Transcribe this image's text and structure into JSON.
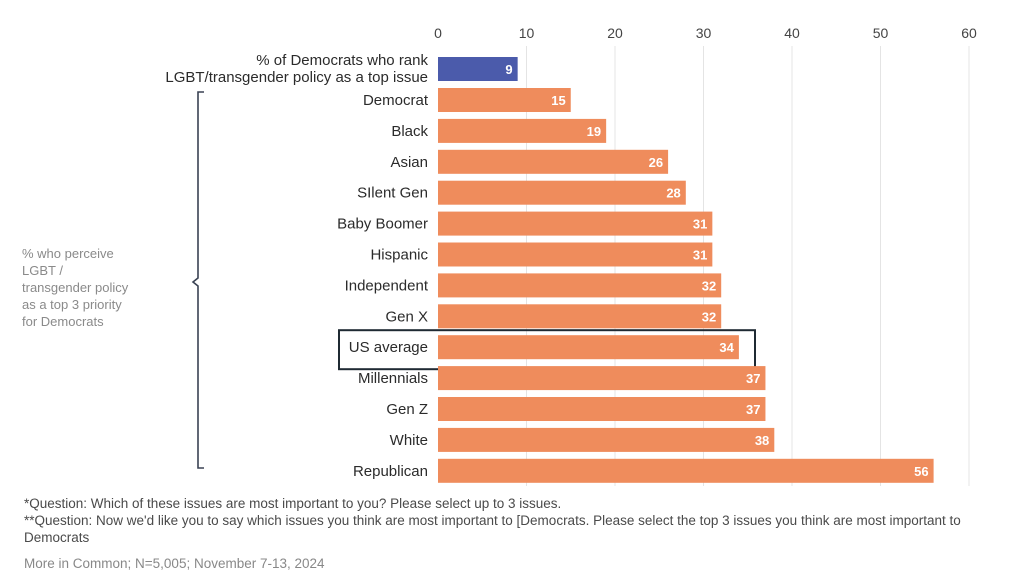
{
  "chart_data": {
    "type": "bar",
    "orientation": "horizontal",
    "xlim": [
      0,
      60
    ],
    "ticks": [
      0,
      10,
      20,
      30,
      40,
      50,
      60
    ],
    "highlight_bar": {
      "label_lines": [
        "% of Democrats who rank",
        "LGBT/transgender policy as a top issue"
      ],
      "value": 9,
      "color": "#4b5bab"
    },
    "side_label_lines": [
      "% who perceive",
      "LGBT /",
      "transgender policy",
      "as a top 3 priority",
      "for Democrats"
    ],
    "categories": [
      "Democrat",
      "Black",
      "Asian",
      "SIlent Gen",
      "Baby Boomer",
      "Hispanic",
      "Independent",
      "Gen X",
      "US average",
      "Millennials",
      "Gen Z",
      "White",
      "Republican"
    ],
    "values": [
      15,
      19,
      26,
      28,
      31,
      31,
      32,
      32,
      34,
      37,
      37,
      38,
      56
    ],
    "bar_color": "#ef8c5c",
    "boxed_category": "US average",
    "grid": true
  },
  "footnotes": {
    "q1": "*Question: Which of these issues are most important to you? Please select up to 3 issues.",
    "q2": "**Question: Now we'd like you to say which issues you think are most important to [Democrats. Please select the top 3 issues you think are most important to Democrats",
    "source": "More in Common; N=5,005; November 7-13, 2024"
  }
}
